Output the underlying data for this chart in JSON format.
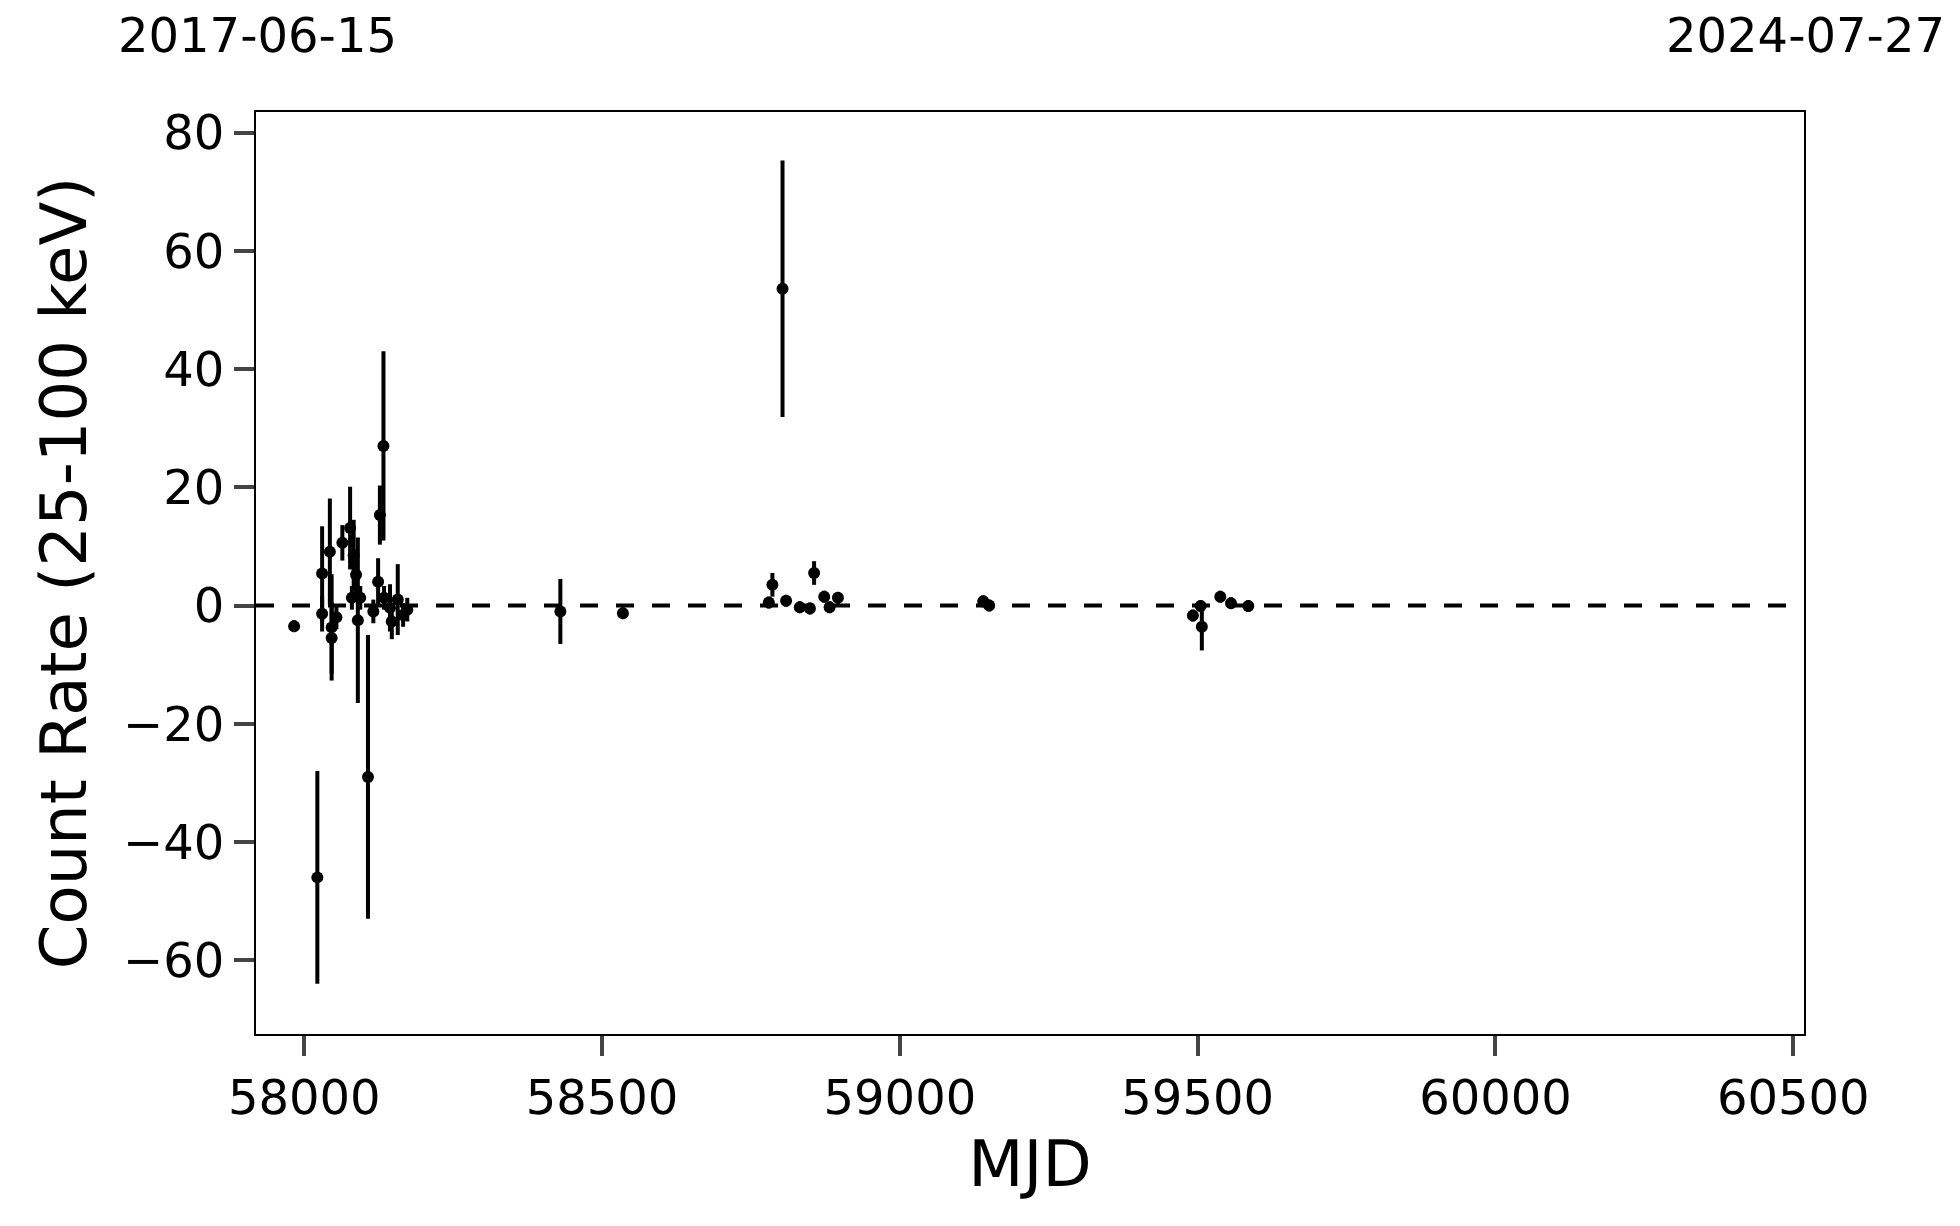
{
  "chart_data": {
    "type": "scatter",
    "xlabel": "MJD",
    "ylabel": "Count Rate (25-100 keV)",
    "x": [
      57983,
      58022,
      58030,
      58030,
      58043,
      58046,
      58046,
      58064,
      58054,
      58077,
      58083,
      58087,
      58080,
      58094,
      58090,
      58107,
      58116,
      58124,
      58127,
      58133,
      58134,
      58144,
      58157,
      58166,
      58173,
      58147,
      58430,
      58535,
      58803,
      58780,
      58786,
      58809,
      58832,
      58849,
      58856,
      58873,
      58882,
      58896,
      59140,
      59150,
      59492,
      59505,
      59507,
      59538,
      59556,
      59585
    ],
    "series": [
      {
        "color": "#000000",
        "values": [
          -3.5,
          -46,
          5.4,
          -1.4,
          9.1,
          -3.7,
          -5.5,
          10.6,
          -2,
          13.1,
          8.5,
          5.2,
          1.3,
          1.3,
          -2.5,
          -29,
          -1,
          4,
          15.3,
          27,
          1.3,
          -0.4,
          1,
          -1.6,
          -0.7,
          -2.7,
          -1,
          -1.3,
          53.6,
          0.5,
          3.5,
          0.8,
          -0.3,
          -0.5,
          5.5,
          1.5,
          -0.3,
          1.3,
          0.7,
          0,
          -1.7,
          -0.1,
          -3.6,
          1.5,
          0.4,
          -0.1
        ],
        "errors": [
          1,
          18,
          8,
          3,
          9,
          9,
          6,
          3,
          2,
          7,
          6,
          4,
          2,
          2,
          14,
          24,
          2,
          4,
          5,
          16,
          2,
          4,
          6,
          2,
          2,
          3,
          5.5,
          1,
          21.7,
          1,
          2,
          1,
          1,
          1,
          2,
          1,
          1,
          1,
          1,
          1,
          1,
          1,
          4,
          1,
          1,
          1
        ]
      }
    ],
    "marker": "circle",
    "xlim": [
      57919,
      60518
    ],
    "xticks": [
      58000,
      58500,
      59000,
      59500,
      60000,
      60500
    ],
    "ylim": [
      -72.5,
      83.5
    ],
    "yticks": [
      {
        "value": -60,
        "label": "−60"
      },
      {
        "value": -40,
        "label": "−40"
      },
      {
        "value": -20,
        "label": "−20"
      },
      0,
      20,
      40,
      60,
      80
    ],
    "annotations": [
      "2017-06-15",
      "2024-07-27"
    ],
    "ref_lines": [
      {
        "axis": "y",
        "value": 0,
        "color": "#000000",
        "line_style": "dashed"
      }
    ]
  }
}
